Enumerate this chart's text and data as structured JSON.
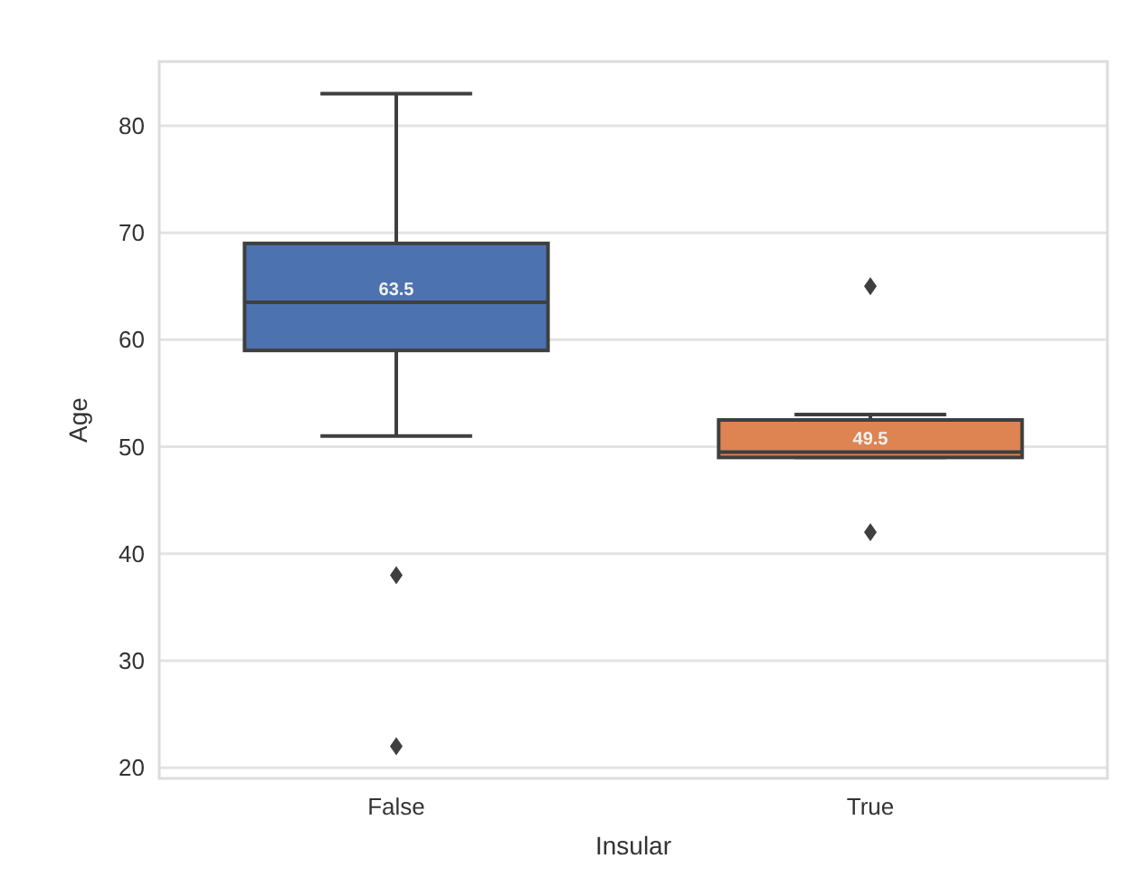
{
  "chart_data": {
    "type": "box",
    "xlabel": "Insular",
    "ylabel": "Age",
    "categories": [
      "False",
      "True"
    ],
    "series": [
      {
        "color": "#4c72b0",
        "boxes": [
          {
            "low": 51,
            "q1": 59,
            "median": 63.5,
            "q3": 69,
            "high": 83,
            "outliers": [
              38,
              22
            ]
          },
          null
        ]
      },
      {
        "color": "#dd8452",
        "boxes": [
          null,
          {
            "low": 49,
            "q1": 49,
            "median": 49.5,
            "q3": 52.5,
            "high": 53,
            "outliers": [
              65,
              42
            ]
          }
        ]
      }
    ],
    "annotations": [
      {
        "text": "63.5",
        "x": "False",
        "y": 63.5
      },
      {
        "text": "49.5",
        "x": "True",
        "y": 49.5
      }
    ],
    "ylim": [
      19,
      86
    ],
    "yticks": [
      20,
      30,
      40,
      50,
      60,
      70,
      80
    ],
    "grid": "y",
    "marker": "diamond"
  }
}
